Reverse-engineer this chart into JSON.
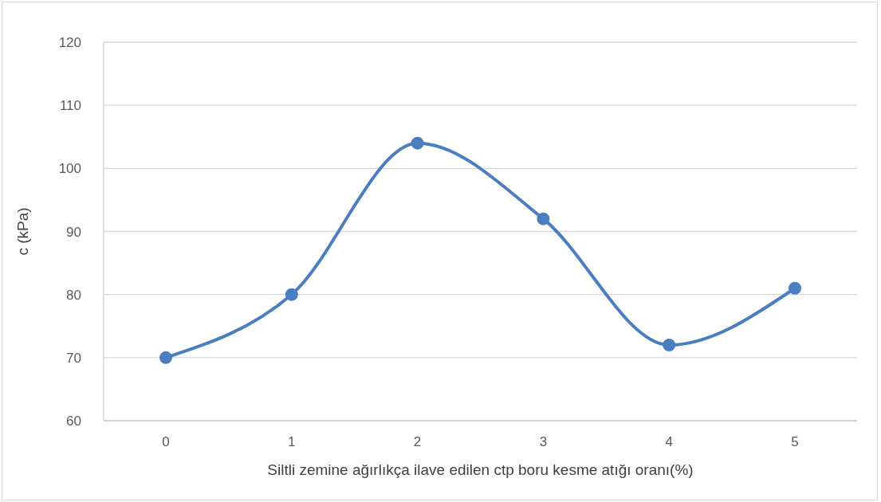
{
  "chart_data": {
    "type": "line",
    "xlabel": "Siltli zemine ağırlıkça ilave edilen ctp boru kesme atığı oranı(%)",
    "ylabel": "c (kPa)",
    "categories": [
      "0",
      "1",
      "2",
      "3",
      "4",
      "5"
    ],
    "series": [
      {
        "color": "#4a7ebf",
        "values": [
          70,
          80,
          104,
          92,
          72,
          81
        ]
      }
    ],
    "ylim": [
      60,
      120
    ],
    "yticks": [
      60,
      70,
      80,
      90,
      100,
      110,
      120
    ],
    "grid": "y",
    "marker": "circle",
    "line_style": "solid",
    "legend": false
  }
}
